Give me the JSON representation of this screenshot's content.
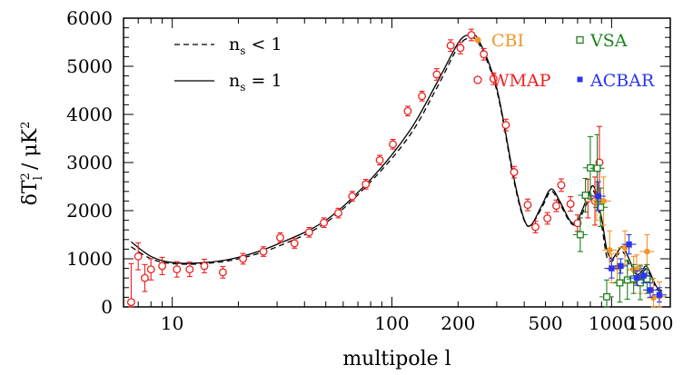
{
  "chart_data": {
    "type": "scatter",
    "title": "",
    "xlabel": "multipole l",
    "ylabel": "δT²_l / μK²",
    "ylabel_parts": {
      "delta": "δ",
      "T": "T",
      "sup": "2",
      "sub": "l",
      "slash": "/",
      "mu": "μ",
      "K": "K",
      "ksup": "2"
    },
    "xscale": "log",
    "xlim": [
      6,
      1850
    ],
    "ylim": [
      0,
      6000
    ],
    "x_ticks": [
      10,
      100,
      200,
      500,
      1000,
      1500
    ],
    "x_tick_labels": [
      "10",
      "100",
      "200",
      "500",
      "1000",
      "1500"
    ],
    "y_ticks": [
      0,
      1000,
      2000,
      3000,
      4000,
      5000,
      6000
    ],
    "y_tick_labels": [
      "0",
      "1000",
      "2000",
      "3000",
      "4000",
      "5000",
      "6000"
    ],
    "models": [
      {
        "name": "n_s < 1",
        "label_parts": {
          "n": "n",
          "s": "s",
          "rel": "<",
          "val": "1"
        },
        "style": "dashed",
        "points": [
          [
            6.5,
            1250
          ],
          [
            8,
            1000
          ],
          [
            10,
            900
          ],
          [
            14,
            900
          ],
          [
            20,
            1000
          ],
          [
            30,
            1250
          ],
          [
            50,
            1750
          ],
          [
            80,
            2600
          ],
          [
            120,
            3550
          ],
          [
            160,
            4550
          ],
          [
            200,
            5400
          ],
          [
            225,
            5580
          ],
          [
            250,
            5450
          ],
          [
            300,
            4500
          ],
          [
            360,
            2600
          ],
          [
            400,
            1800
          ],
          [
            430,
            1700
          ],
          [
            480,
            2050
          ],
          [
            530,
            2400
          ],
          [
            580,
            2150
          ],
          [
            650,
            1750
          ],
          [
            700,
            1750
          ],
          [
            780,
            2200
          ],
          [
            830,
            2400
          ],
          [
            900,
            1700
          ],
          [
            950,
            1050
          ],
          [
            1000,
            950
          ],
          [
            1050,
            1050
          ],
          [
            1120,
            1150
          ],
          [
            1200,
            900
          ],
          [
            1280,
            650
          ],
          [
            1350,
            650
          ],
          [
            1430,
            780
          ],
          [
            1500,
            650
          ],
          [
            1600,
            380
          ],
          [
            1700,
            300
          ]
        ]
      },
      {
        "name": "n_s = 1",
        "label_parts": {
          "n": "n",
          "s": "s",
          "rel": "=",
          "val": "1"
        },
        "style": "solid",
        "points": [
          [
            6.5,
            1350
          ],
          [
            8,
            1050
          ],
          [
            10,
            920
          ],
          [
            14,
            920
          ],
          [
            20,
            1030
          ],
          [
            30,
            1300
          ],
          [
            50,
            1800
          ],
          [
            80,
            2650
          ],
          [
            120,
            3650
          ],
          [
            160,
            4650
          ],
          [
            200,
            5480
          ],
          [
            225,
            5650
          ],
          [
            250,
            5520
          ],
          [
            300,
            4550
          ],
          [
            360,
            2650
          ],
          [
            400,
            1820
          ],
          [
            430,
            1700
          ],
          [
            480,
            2100
          ],
          [
            530,
            2450
          ],
          [
            580,
            2200
          ],
          [
            650,
            1780
          ],
          [
            700,
            1800
          ],
          [
            780,
            2300
          ],
          [
            830,
            2500
          ],
          [
            900,
            1850
          ],
          [
            950,
            1200
          ],
          [
            1000,
            1000
          ],
          [
            1050,
            1100
          ],
          [
            1120,
            1250
          ],
          [
            1200,
            1000
          ],
          [
            1280,
            700
          ],
          [
            1350,
            700
          ],
          [
            1430,
            850
          ],
          [
            1500,
            700
          ],
          [
            1600,
            420
          ],
          [
            1700,
            330
          ]
        ]
      }
    ],
    "series": [
      {
        "name": "WMAP",
        "marker": "open-circle",
        "color": "#ee2020",
        "points": [
          [
            6.5,
            100,
            800
          ],
          [
            7,
            1050,
            280
          ],
          [
            7.5,
            600,
            280
          ],
          [
            8,
            780,
            220
          ],
          [
            9,
            850,
            180
          ],
          [
            10.5,
            780,
            160
          ],
          [
            12,
            780,
            150
          ],
          [
            14,
            850,
            140
          ],
          [
            17,
            720,
            120
          ],
          [
            21,
            1000,
            110
          ],
          [
            26,
            1150,
            100
          ],
          [
            31,
            1440,
            100
          ],
          [
            36,
            1320,
            100
          ],
          [
            42,
            1550,
            100
          ],
          [
            49,
            1750,
            100
          ],
          [
            57,
            1950,
            100
          ],
          [
            66,
            2300,
            100
          ],
          [
            76,
            2550,
            100
          ],
          [
            88,
            3050,
            100
          ],
          [
            101,
            3380,
            100
          ],
          [
            118,
            4070,
            100
          ],
          [
            137,
            4380,
            100
          ],
          [
            160,
            4830,
            120
          ],
          [
            185,
            5430,
            120
          ],
          [
            205,
            5380,
            120
          ],
          [
            230,
            5650,
            120
          ],
          [
            262,
            5250,
            120
          ],
          [
            290,
            4740,
            120
          ],
          [
            330,
            3780,
            120
          ],
          [
            360,
            2800,
            120
          ],
          [
            415,
            2120,
            120
          ],
          [
            450,
            1660,
            120
          ],
          [
            510,
            1840,
            120
          ],
          [
            560,
            2100,
            120
          ],
          [
            590,
            2530,
            130
          ],
          [
            650,
            2140,
            150
          ],
          [
            700,
            1740,
            170
          ],
          [
            780,
            2250,
            400
          ],
          [
            840,
            2200,
            500
          ],
          [
            880,
            3000,
            750
          ]
        ]
      },
      {
        "name": "CBI",
        "marker": "filled-circle",
        "color": "#f0962a",
        "points": [
          [
            855,
            2200,
            400
          ],
          [
            920,
            2200,
            500
          ],
          [
            980,
            1180,
            400
          ],
          [
            1000,
            800,
            300
          ],
          [
            1060,
            820,
            300
          ],
          [
            1150,
            1230,
            350
          ],
          [
            1260,
            770,
            280
          ],
          [
            1300,
            780,
            300
          ],
          [
            1350,
            580,
            300
          ],
          [
            1450,
            1150,
            350
          ],
          [
            1550,
            190,
            400
          ],
          [
            1650,
            220,
            300
          ]
        ]
      },
      {
        "name": "VSA",
        "marker": "open-square",
        "color": "#208020",
        "points": [
          [
            720,
            1500,
            350
          ],
          [
            760,
            2320,
            350
          ],
          [
            800,
            2890,
            650
          ],
          [
            860,
            2880,
            700
          ],
          [
            890,
            2070,
            400
          ],
          [
            950,
            210,
            350
          ],
          [
            1090,
            500,
            400
          ],
          [
            1180,
            560,
            400
          ],
          [
            1260,
            580,
            300
          ],
          [
            1350,
            500,
            350
          ],
          [
            1450,
            580,
            300
          ]
        ]
      },
      {
        "name": "ACBAR",
        "marker": "filled-square",
        "color": "#2a35f0",
        "points": [
          [
            870,
            2300,
            300
          ],
          [
            1000,
            800,
            200
          ],
          [
            1100,
            850,
            150
          ],
          [
            1200,
            1300,
            200
          ],
          [
            1300,
            600,
            150
          ],
          [
            1400,
            650,
            150
          ],
          [
            1500,
            350,
            150
          ],
          [
            1650,
            250,
            150
          ]
        ]
      }
    ]
  }
}
